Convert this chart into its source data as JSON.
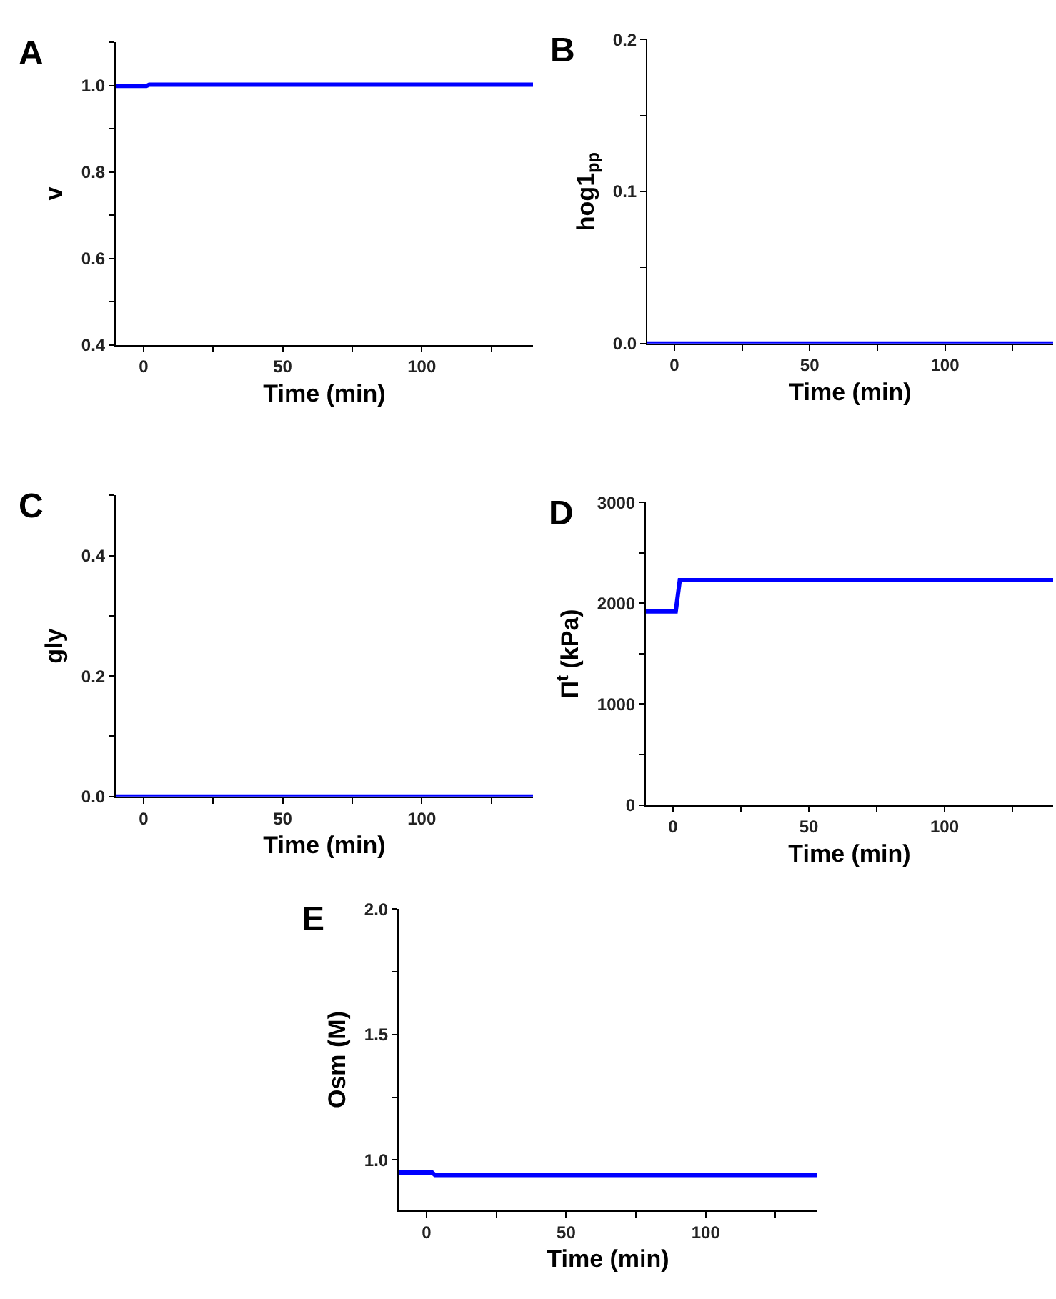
{
  "chart_data": [
    {
      "type": "line",
      "title": "A",
      "xlabel": "Time (min)",
      "ylabel": "v",
      "xlim": [
        -10,
        140
      ],
      "xticks": [
        0,
        {
          "value": 25,
          "label": null
        },
        50,
        {
          "value": 75,
          "label": null
        },
        100,
        {
          "value": 125,
          "label": null
        }
      ],
      "ylim": [
        0.4,
        1.1
      ],
      "yticks": [
        {
          "value": 0.4,
          "label": "0.4"
        },
        {
          "value": 0.5,
          "label": null
        },
        {
          "value": 0.6,
          "label": "0.6"
        },
        {
          "value": 0.7,
          "label": null
        },
        {
          "value": 0.8,
          "label": "0.8"
        },
        {
          "value": 0.9,
          "label": null
        },
        {
          "value": 1.0,
          "label": "1.0"
        },
        {
          "value": 1.1,
          "label": null
        }
      ],
      "series": [
        {
          "color": "#0000ff",
          "x": [
            -10,
            1,
            2,
            140
          ],
          "values": [
            0.999,
            0.999,
            1.002,
            1.002
          ]
        }
      ]
    },
    {
      "type": "line",
      "title": "B",
      "xlabel": "Time (min)",
      "ylabel": "hog1$_{pp}$",
      "xlim": [
        -10,
        140
      ],
      "xticks": [
        0,
        {
          "value": 25,
          "label": null
        },
        50,
        {
          "value": 75,
          "label": null
        },
        100,
        {
          "value": 125,
          "label": null
        }
      ],
      "ylim": [
        0,
        0.2
      ],
      "yticks": [
        {
          "value": 0,
          "label": "0.0"
        },
        {
          "value": 0.05,
          "label": null
        },
        0.1,
        {
          "value": 0.15,
          "label": null
        },
        0.2
      ],
      "series": [
        {
          "color": "#0000ff",
          "x": [
            -10,
            140
          ],
          "values": [
            0,
            0
          ]
        }
      ]
    },
    {
      "type": "line",
      "title": "C",
      "xlabel": "Time (min)",
      "ylabel": "gly",
      "xlim": [
        -10,
        140
      ],
      "xticks": [
        0,
        {
          "value": 25,
          "label": null
        },
        50,
        {
          "value": 75,
          "label": null
        },
        100,
        {
          "value": 125,
          "label": null
        }
      ],
      "ylim": [
        0,
        0.5
      ],
      "yticks": [
        {
          "value": 0,
          "label": "0.0"
        },
        {
          "value": 0.1,
          "label": null
        },
        0.2,
        {
          "value": 0.3,
          "label": null
        },
        0.4,
        {
          "value": 0.5,
          "label": null
        }
      ],
      "series": [
        {
          "color": "#0000ff",
          "x": [
            -10,
            140
          ],
          "values": [
            0,
            0
          ]
        }
      ]
    },
    {
      "type": "line",
      "title": "D",
      "xlabel": "Time (min)",
      "ylabel": "Π$^{t}$ (kPa)",
      "xlim": [
        -10,
        140
      ],
      "xticks": [
        0,
        {
          "value": 25,
          "label": null
        },
        50,
        {
          "value": 75,
          "label": null
        },
        100,
        {
          "value": 125,
          "label": null
        }
      ],
      "ylim": [
        0,
        3000
      ],
      "yticks": [
        0,
        {
          "value": 500,
          "label": null
        },
        1000,
        {
          "value": 1500,
          "label": null
        },
        2000,
        {
          "value": 2500,
          "label": null
        },
        3000
      ],
      "series": [
        {
          "color": "#0000ff",
          "x": [
            -10,
            1,
            2.5,
            140
          ],
          "values": [
            1920,
            1920,
            2230,
            2230
          ]
        }
      ]
    },
    {
      "type": "line",
      "title": "E",
      "xlabel": "Time (min)",
      "ylabel": "Osm (M)",
      "xlim": [
        -10,
        140
      ],
      "xticks": [
        0,
        {
          "value": 25,
          "label": null
        },
        50,
        {
          "value": 75,
          "label": null
        },
        100,
        {
          "value": 125,
          "label": null
        }
      ],
      "ylim": [
        0.8,
        2.0
      ],
      "yticks": [
        {
          "value": 1.0,
          "label": "1.0"
        },
        {
          "value": 1.25,
          "label": null
        },
        1.5,
        {
          "value": 1.75,
          "label": null
        },
        {
          "value": 2.0,
          "label": "2.0"
        }
      ],
      "series": [
        {
          "color": "#0000ff",
          "x": [
            -10,
            2,
            3,
            140
          ],
          "values": [
            0.95,
            0.95,
            0.94,
            0.94
          ]
        }
      ]
    }
  ]
}
